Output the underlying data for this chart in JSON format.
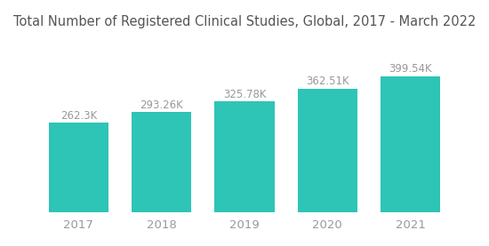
{
  "title": "Total Number of Registered Clinical Studies, Global, 2017 - March 2022",
  "categories": [
    "2017",
    "2018",
    "2019",
    "2020",
    "2021"
  ],
  "values": [
    262300,
    293260,
    325780,
    362510,
    399540
  ],
  "labels": [
    "262.3K",
    "293.26K",
    "325.78K",
    "362.51K",
    "399.54K"
  ],
  "bar_color": "#2EC4B6",
  "background_color": "#ffffff",
  "title_fontsize": 10.5,
  "label_fontsize": 8.5,
  "tick_fontsize": 9.5,
  "title_color": "#555555",
  "label_color": "#999999",
  "tick_color": "#999999",
  "bar_width": 0.72,
  "ylim_factor": 1.28
}
